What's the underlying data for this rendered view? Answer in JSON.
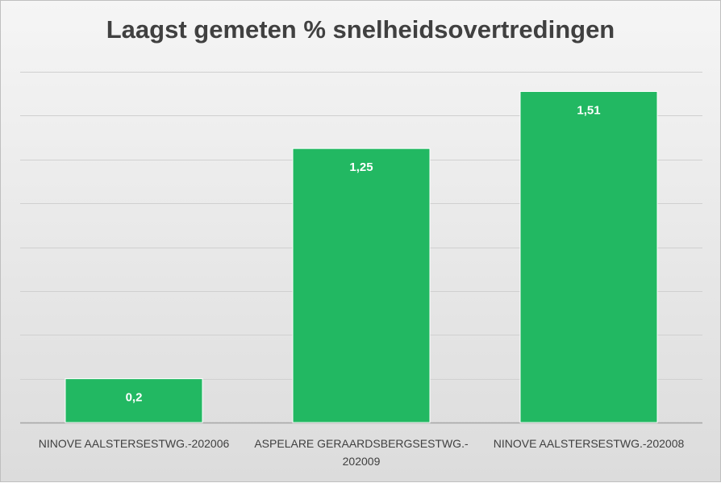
{
  "chart_data": {
    "type": "bar",
    "title": "Laagst gemeten % snelheidsovertredingen",
    "categories": [
      [
        "NINOVE AALSTERSESTWG.-202006"
      ],
      [
        "ASPELARE GERAARDSBERGSESTWG.-",
        "202009"
      ],
      [
        "NINOVE AALSTERSESTWG.-202008"
      ]
    ],
    "values": [
      0.2,
      1.25,
      1.51
    ],
    "value_labels": [
      "0,2",
      "1,25",
      "1,51"
    ],
    "ylim": [
      0,
      1.6
    ],
    "grid": true,
    "bar_color": "#22b862",
    "gridline_color": "#d0d0d0"
  }
}
